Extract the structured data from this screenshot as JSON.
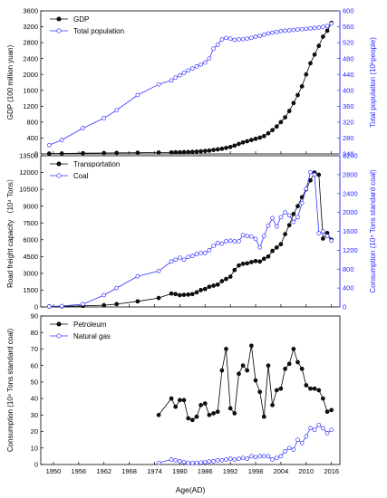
{
  "xlabel": "Age(AD)",
  "x_ticks": [
    1950,
    1956,
    1962,
    1968,
    1974,
    1980,
    1986,
    1992,
    1998,
    2004,
    2010,
    2016
  ],
  "colors": {
    "left_series": "#000000",
    "right_series": "#3333ff"
  },
  "chart_data": [
    {
      "type": "line",
      "xlim": [
        1947,
        2018
      ],
      "ylabel": "GDP (100 million yuan)",
      "ylabel_right": "Total population (10⁶people)",
      "ylim": [
        0,
        3600
      ],
      "ylim_right": [
        240,
        600
      ],
      "yticks": [
        0,
        400,
        800,
        1200,
        1600,
        2000,
        2400,
        2800,
        3200,
        3600
      ],
      "yticks_right": [
        240,
        280,
        320,
        360,
        400,
        440,
        480,
        520,
        560,
        600
      ],
      "legend": "top-left",
      "series": [
        {
          "name": "GDP",
          "axis": "left",
          "x": [
            1949,
            1952,
            1957,
            1962,
            1965,
            1970,
            1975,
            1978,
            1979,
            1980,
            1981,
            1982,
            1983,
            1984,
            1985,
            1986,
            1987,
            1988,
            1989,
            1990,
            1991,
            1992,
            1993,
            1994,
            1995,
            1996,
            1997,
            1998,
            1999,
            2000,
            2001,
            2002,
            2003,
            2004,
            2005,
            2006,
            2007,
            2008,
            2009,
            2010,
            2011,
            2012,
            2013,
            2014,
            2015,
            2016
          ],
          "values": [
            8,
            12,
            18,
            22,
            25,
            30,
            35,
            38,
            40,
            42,
            45,
            48,
            52,
            58,
            65,
            75,
            85,
            100,
            115,
            130,
            150,
            175,
            210,
            250,
            290,
            320,
            350,
            380,
            410,
            450,
            520,
            600,
            690,
            800,
            920,
            1080,
            1280,
            1480,
            1700,
            2000,
            2280,
            2500,
            2720,
            2950,
            3100,
            3300
          ]
        },
        {
          "name": "Total population",
          "axis": "right",
          "x": [
            1949,
            1952,
            1957,
            1962,
            1965,
            1970,
            1975,
            1978,
            1979,
            1980,
            1981,
            1982,
            1983,
            1984,
            1985,
            1986,
            1987,
            1988,
            1989,
            1990,
            1991,
            1992,
            1993,
            1994,
            1995,
            1996,
            1997,
            1998,
            1999,
            2000,
            2001,
            2002,
            2003,
            2004,
            2005,
            2006,
            2007,
            2008,
            2009,
            2010,
            2011,
            2012,
            2013,
            2014,
            2015,
            2016
          ],
          "values": [
            262,
            275,
            305,
            330,
            350,
            388,
            415,
            425,
            432,
            438,
            444,
            450,
            455,
            460,
            465,
            470,
            480,
            505,
            515,
            528,
            532,
            530,
            527,
            528,
            529,
            530,
            532,
            535,
            537,
            540,
            543,
            545,
            547,
            549,
            550,
            551,
            552,
            553,
            554,
            555,
            556,
            557,
            558,
            560,
            562,
            568
          ]
        }
      ]
    },
    {
      "type": "line",
      "xlim": [
        1947,
        2018
      ],
      "ylabel": "Road freight capacity （10⁴ Tons）",
      "ylabel_right": "Consumption (10⁴ Tons standard coal)",
      "ylim": [
        0,
        13500
      ],
      "ylim_right": [
        0,
        3200
      ],
      "yticks": [
        0,
        1500,
        3000,
        4500,
        6000,
        7500,
        9000,
        10500,
        12000,
        13500
      ],
      "yticks_right": [
        0,
        400,
        800,
        1200,
        1600,
        2000,
        2400,
        2800,
        3200
      ],
      "legend": "top-left",
      "series": [
        {
          "name": "Transportation",
          "axis": "left",
          "x": [
            1949,
            1952,
            1957,
            1962,
            1965,
            1970,
            1975,
            1978,
            1979,
            1980,
            1981,
            1982,
            1983,
            1984,
            1985,
            1986,
            1987,
            1988,
            1989,
            1990,
            1991,
            1992,
            1993,
            1994,
            1995,
            1996,
            1997,
            1998,
            1999,
            2000,
            2001,
            2002,
            2003,
            2004,
            2005,
            2006,
            2007,
            2008,
            2009,
            2010,
            2011,
            2012,
            2013,
            2014,
            2015,
            2016
          ],
          "values": [
            40,
            60,
            100,
            150,
            250,
            500,
            800,
            1200,
            1150,
            1050,
            1080,
            1100,
            1150,
            1300,
            1500,
            1600,
            1800,
            1900,
            2000,
            2300,
            2500,
            2700,
            3300,
            3700,
            3850,
            3900,
            4000,
            4100,
            4050,
            4300,
            4500,
            5000,
            5300,
            5600,
            6500,
            7300,
            8300,
            9000,
            9800,
            10500,
            11300,
            12000,
            11800,
            6100,
            6600,
            6000
          ]
        },
        {
          "name": "Coal",
          "axis": "right",
          "x": [
            1949,
            1952,
            1957,
            1962,
            1965,
            1970,
            1975,
            1978,
            1979,
            1980,
            1981,
            1982,
            1983,
            1984,
            1985,
            1986,
            1987,
            1988,
            1989,
            1990,
            1991,
            1992,
            1993,
            1994,
            1995,
            1996,
            1997,
            1998,
            1999,
            2000,
            2001,
            2002,
            2003,
            2004,
            2005,
            2006,
            2007,
            2008,
            2009,
            2010,
            2011,
            2012,
            2013,
            2014,
            2015,
            2016
          ],
          "values": [
            10,
            20,
            60,
            250,
            400,
            650,
            760,
            960,
            1000,
            1040,
            1000,
            1060,
            1080,
            1120,
            1140,
            1140,
            1200,
            1290,
            1350,
            1340,
            1390,
            1400,
            1390,
            1390,
            1520,
            1500,
            1490,
            1440,
            1260,
            1500,
            1720,
            1880,
            1700,
            1900,
            2000,
            1940,
            1800,
            1900,
            2200,
            2500,
            2850,
            2800,
            1560,
            1600,
            1500,
            1400
          ]
        }
      ]
    },
    {
      "type": "line",
      "xlim": [
        1947,
        2018
      ],
      "ylabel": "Consumption (10⁴ Tons standard coal)",
      "ylim": [
        0,
        90
      ],
      "yticks": [
        0,
        10,
        20,
        30,
        40,
        50,
        60,
        70,
        80,
        90
      ],
      "legend": "top-left",
      "series": [
        {
          "name": "Petroleum",
          "axis": "left",
          "x": [
            1975,
            1978,
            1979,
            1980,
            1981,
            1982,
            1983,
            1984,
            1985,
            1986,
            1987,
            1988,
            1989,
            1990,
            1991,
            1992,
            1993,
            1994,
            1995,
            1996,
            1997,
            1998,
            1999,
            2000,
            2001,
            2002,
            2003,
            2004,
            2005,
            2006,
            2007,
            2008,
            2009,
            2010,
            2011,
            2012,
            2013,
            2014,
            2015,
            2016
          ],
          "values": [
            30,
            40,
            35,
            39,
            39,
            28,
            27,
            29,
            36,
            37,
            30,
            31,
            32,
            57,
            70,
            34,
            31,
            55,
            60,
            57,
            72,
            51,
            44,
            29,
            60,
            36,
            45,
            46,
            58,
            61,
            70,
            62,
            58,
            48,
            46,
            46,
            45,
            40,
            32,
            33
          ]
        },
        {
          "name": "Natural gas",
          "axis": "left",
          "x": [
            1975,
            1978,
            1979,
            1980,
            1981,
            1982,
            1983,
            1984,
            1985,
            1986,
            1987,
            1988,
            1989,
            1990,
            1991,
            1992,
            1993,
            1994,
            1995,
            1996,
            1997,
            1998,
            1999,
            2000,
            2001,
            2002,
            2003,
            2004,
            2005,
            2006,
            2007,
            2008,
            2009,
            2010,
            2011,
            2012,
            2013,
            2014,
            2015,
            2016
          ],
          "values": [
            1,
            3,
            2.5,
            2,
            1.5,
            1,
            1,
            1,
            1.2,
            1.5,
            1.8,
            2,
            2.5,
            2.5,
            3,
            3.5,
            3,
            3.5,
            4,
            3.5,
            5,
            4.5,
            5,
            5,
            5,
            3,
            4,
            5,
            8,
            10,
            9,
            15,
            13,
            17,
            22,
            21,
            24,
            22,
            19,
            21
          ]
        }
      ]
    }
  ]
}
